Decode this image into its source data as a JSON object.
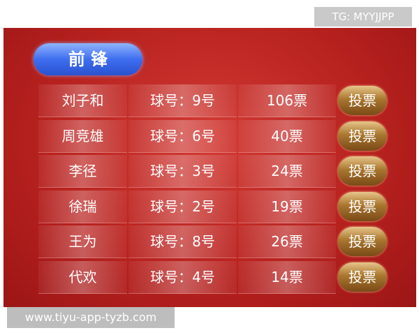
{
  "watermark_top": "TG: MYYJJPP",
  "header": {
    "title": "前 锋"
  },
  "table": {
    "rows": [
      {
        "name": "刘子和",
        "number": "球号：9号",
        "votes": "106票",
        "button": "投票"
      },
      {
        "name": "周竞雄",
        "number": "球号：6号",
        "votes": "40票",
        "button": "投票"
      },
      {
        "name": "李径",
        "number": "球号：3号",
        "votes": "24票",
        "button": "投票"
      },
      {
        "name": "徐瑞",
        "number": "球号：2号",
        "votes": "19票",
        "button": "投票"
      },
      {
        "name": "王为",
        "number": "球号：8号",
        "votes": "26票",
        "button": "投票"
      },
      {
        "name": "代欢",
        "number": "球号：4号",
        "votes": "14票",
        "button": "投票"
      }
    ]
  },
  "watermark_bottom": "www.tiyu-app-tyzb.com"
}
